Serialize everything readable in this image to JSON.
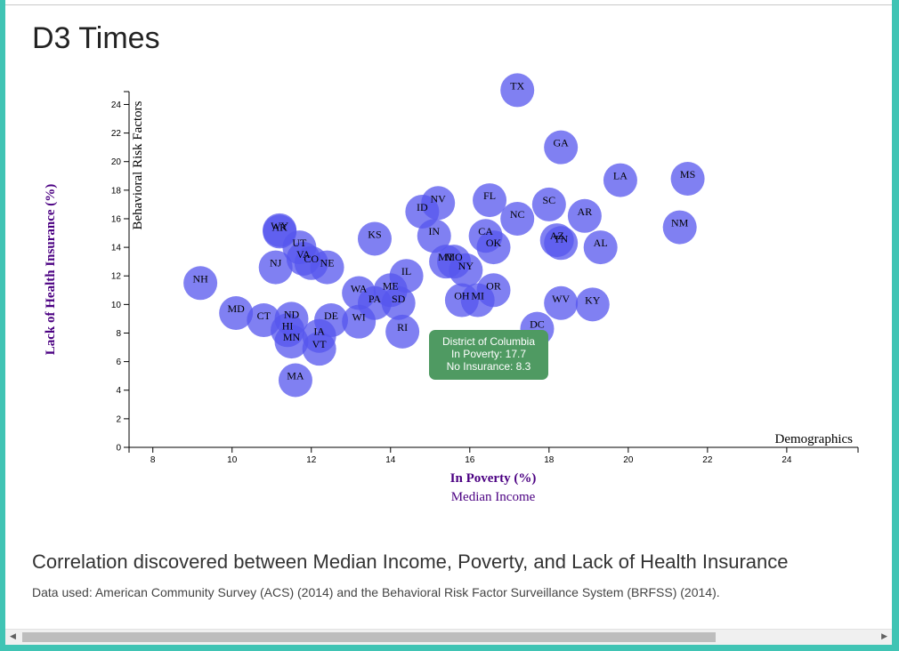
{
  "page": {
    "title": "D3 Times",
    "subtitle": "Correlation discovered between Median Income, Poverty, and Lack of Health Insurance",
    "caption": "Data used: American Community Survey (ACS) (2014) and the Behavioral Risk Factor Surveillance System (BRFSS) (2014)."
  },
  "tooltip": {
    "state": "District of Columbia",
    "poverty_line": "In Poverty: 17.7",
    "insurance_line": "No Insurance: 8.3"
  },
  "scrollbar": {
    "left_arrow": "◀",
    "right_arrow": "▶"
  },
  "colors": {
    "marker": "#5555ee",
    "tooltip_bg": "#4f9a62",
    "active_axis_label": "#4b0082",
    "inactive_axis_label": "#4b0082"
  },
  "chart_data": {
    "type": "scatter",
    "x_axis": {
      "active_label": "In Poverty (%)",
      "inactive_labels": [
        "Median Income"
      ],
      "corner_label": "Demographics",
      "ticks": [
        8,
        10,
        12,
        14,
        16,
        18,
        20,
        22,
        24
      ],
      "range": [
        7.4,
        25.8
      ]
    },
    "y_axis": {
      "active_label": "Lack of Health Insurance (%)",
      "inactive_labels": [
        "Behavioral Risk Factors"
      ],
      "ticks": [
        0,
        2,
        4,
        6,
        8,
        10,
        12,
        14,
        16,
        18,
        20,
        22,
        24
      ],
      "range": [
        0,
        24.9
      ]
    },
    "grid": false,
    "points": [
      {
        "abbr": "TX",
        "x": 17.2,
        "y": 25.0
      },
      {
        "abbr": "GA",
        "x": 18.3,
        "y": 21.0
      },
      {
        "abbr": "LA",
        "x": 19.8,
        "y": 18.7
      },
      {
        "abbr": "MS",
        "x": 21.5,
        "y": 18.8
      },
      {
        "abbr": "FL",
        "x": 16.5,
        "y": 17.3
      },
      {
        "abbr": "NV",
        "x": 15.2,
        "y": 17.1
      },
      {
        "abbr": "ID",
        "x": 14.8,
        "y": 16.5
      },
      {
        "abbr": "SC",
        "x": 18.0,
        "y": 17.0
      },
      {
        "abbr": "NC",
        "x": 17.2,
        "y": 16.0
      },
      {
        "abbr": "AR",
        "x": 18.9,
        "y": 16.2
      },
      {
        "abbr": "NM",
        "x": 21.3,
        "y": 15.4
      },
      {
        "abbr": "IN",
        "x": 15.1,
        "y": 14.8
      },
      {
        "abbr": "CA",
        "x": 16.4,
        "y": 14.8
      },
      {
        "abbr": "OK",
        "x": 16.6,
        "y": 14.0
      },
      {
        "abbr": "AZ",
        "x": 18.2,
        "y": 14.5
      },
      {
        "abbr": "TN",
        "x": 18.3,
        "y": 14.3
      },
      {
        "abbr": "AL",
        "x": 19.3,
        "y": 14.0
      },
      {
        "abbr": "WY",
        "x": 11.2,
        "y": 15.2
      },
      {
        "abbr": "AK",
        "x": 11.2,
        "y": 15.1
      },
      {
        "abbr": "KS",
        "x": 13.6,
        "y": 14.6
      },
      {
        "abbr": "UT",
        "x": 11.7,
        "y": 14.0
      },
      {
        "abbr": "VA",
        "x": 11.8,
        "y": 13.2
      },
      {
        "abbr": "CO",
        "x": 12.0,
        "y": 12.9
      },
      {
        "abbr": "NE",
        "x": 12.4,
        "y": 12.6
      },
      {
        "abbr": "NJ",
        "x": 11.1,
        "y": 12.6
      },
      {
        "abbr": "MT",
        "x": 15.4,
        "y": 13.0
      },
      {
        "abbr": "MO",
        "x": 15.6,
        "y": 13.0
      },
      {
        "abbr": "NY",
        "x": 15.9,
        "y": 12.4
      },
      {
        "abbr": "IL",
        "x": 14.4,
        "y": 12.0
      },
      {
        "abbr": "NH",
        "x": 9.2,
        "y": 11.5
      },
      {
        "abbr": "OR",
        "x": 16.6,
        "y": 11.0
      },
      {
        "abbr": "WA",
        "x": 13.2,
        "y": 10.8
      },
      {
        "abbr": "ME",
        "x": 14.0,
        "y": 11.0
      },
      {
        "abbr": "PA",
        "x": 13.6,
        "y": 10.1
      },
      {
        "abbr": "SD",
        "x": 14.2,
        "y": 10.1
      },
      {
        "abbr": "OH",
        "x": 15.8,
        "y": 10.3
      },
      {
        "abbr": "MI",
        "x": 16.2,
        "y": 10.3
      },
      {
        "abbr": "WV",
        "x": 18.3,
        "y": 10.1
      },
      {
        "abbr": "KY",
        "x": 19.1,
        "y": 10.0
      },
      {
        "abbr": "MD",
        "x": 10.1,
        "y": 9.4
      },
      {
        "abbr": "CT",
        "x": 10.8,
        "y": 8.9
      },
      {
        "abbr": "ND",
        "x": 11.5,
        "y": 9.0
      },
      {
        "abbr": "DE",
        "x": 12.5,
        "y": 8.9
      },
      {
        "abbr": "WI",
        "x": 13.2,
        "y": 8.8
      },
      {
        "abbr": "HI",
        "x": 11.4,
        "y": 8.2
      },
      {
        "abbr": "RI",
        "x": 14.3,
        "y": 8.1
      },
      {
        "abbr": "DC",
        "x": 17.7,
        "y": 8.3
      },
      {
        "abbr": "IA",
        "x": 12.2,
        "y": 7.8
      },
      {
        "abbr": "MN",
        "x": 11.5,
        "y": 7.4
      },
      {
        "abbr": "VT",
        "x": 12.2,
        "y": 6.9
      },
      {
        "abbr": "MA",
        "x": 11.6,
        "y": 4.7
      }
    ]
  }
}
